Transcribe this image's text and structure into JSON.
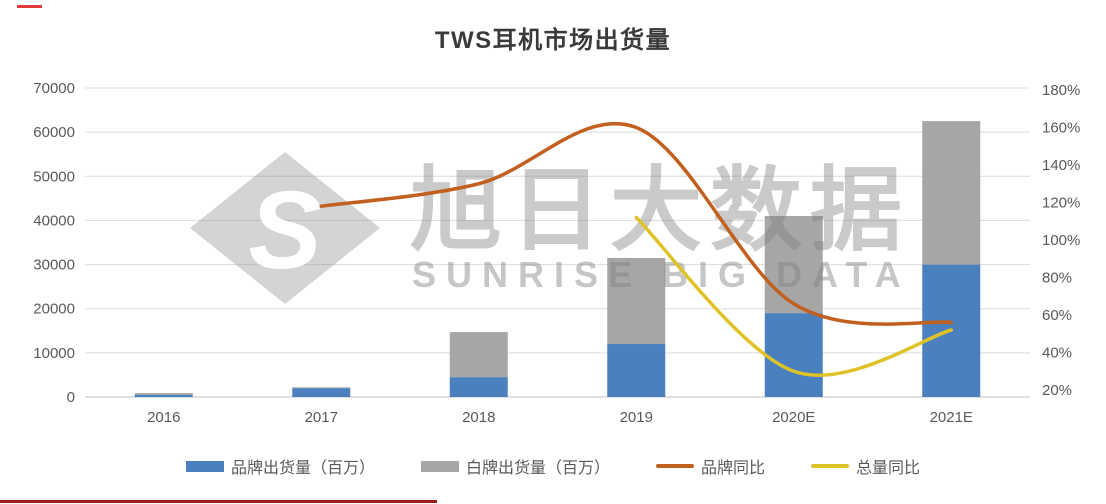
{
  "title": "TWS耳机市场出货量",
  "watermark": {
    "logo_letter": "S",
    "cn": "旭日大数据",
    "en": "SUNRISE BIG DATA"
  },
  "chart_data": {
    "type": "combo-stacked-bar-line",
    "categories": [
      "2016",
      "2017",
      "2018",
      "2019",
      "2020E",
      "2021E"
    ],
    "bar_series": [
      {
        "key": "brand-shipments",
        "name": "品牌出货量（百万）",
        "color": "#4a80be",
        "values": [
          500,
          2000,
          4500,
          12000,
          19000,
          30000
        ]
      },
      {
        "key": "whitelabel-shipments",
        "name": "白牌出货量（百万）",
        "color": "#a6a6a6",
        "values": [
          400,
          200,
          10200,
          19500,
          22000,
          32500
        ]
      }
    ],
    "line_series": [
      {
        "key": "brand-yoy",
        "name": "品牌同比",
        "color": "#c2601f",
        "axis": "right",
        "values": [
          null,
          118,
          130,
          160,
          66,
          56
        ]
      },
      {
        "key": "total-yoy",
        "name": "总量同比",
        "color": "#dfc228",
        "axis": "right",
        "values": [
          null,
          null,
          null,
          112,
          30,
          52
        ]
      }
    ],
    "left_axis": {
      "min": 0,
      "max": 70000,
      "step": 10000,
      "ticks": [
        "0",
        "10000",
        "20000",
        "30000",
        "40000",
        "50000",
        "60000",
        "70000"
      ]
    },
    "right_axis": {
      "min": 20,
      "max": 180,
      "step": 20,
      "ticks": [
        "20%",
        "40%",
        "60%",
        "80%",
        "100%",
        "120%",
        "140%",
        "160%",
        "180%"
      ]
    },
    "grid": "horizontal",
    "legend_position": "bottom"
  },
  "colors": {
    "grid": "#dcdcdc",
    "axis_line": "#bfbfbf",
    "tick_text": "#595959",
    "watermark_gray": "#828282",
    "red_accent": "#e23b3b",
    "dark_red_underline": "#9c1a1a"
  }
}
